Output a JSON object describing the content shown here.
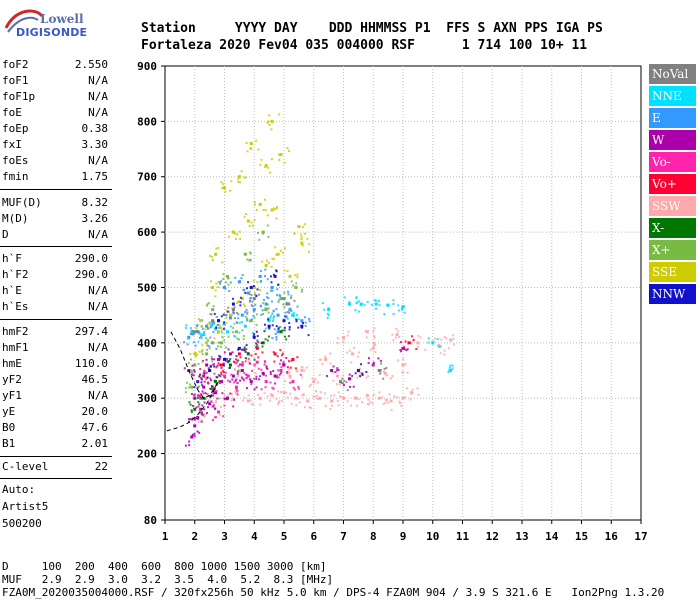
{
  "logo": {
    "top": "Lowell",
    "bottom": "DIGISONDE"
  },
  "header": {
    "line1": "Station     YYYY DAY    DDD HHMMSS P1  FFS S AXN PPS IGA PS",
    "line2": "Fortaleza 2020 Fev04 035 004000 RSF      1 714 100 10+ 11"
  },
  "params": {
    "foF2": {
      "label": "foF2",
      "value": "2.550"
    },
    "foF1": {
      "label": "foF1",
      "value": "N/A"
    },
    "foF1p": {
      "label": "foF1p",
      "value": "N/A"
    },
    "foE": {
      "label": "foE",
      "value": "N/A"
    },
    "foEp": {
      "label": "foEp",
      "value": "0.38"
    },
    "fxI": {
      "label": "fxI",
      "value": "3.30"
    },
    "foEs": {
      "label": "foEs",
      "value": "N/A"
    },
    "fmin": {
      "label": "fmin",
      "value": "1.75"
    },
    "MUFD": {
      "label": "MUF(D)",
      "value": "8.32"
    },
    "MD": {
      "label": "M(D)",
      "value": "3.26"
    },
    "D": {
      "label": "D",
      "value": "N/A"
    },
    "hF": {
      "label": "h`F",
      "value": "290.0"
    },
    "hF2": {
      "label": "h`F2",
      "value": "290.0"
    },
    "hE": {
      "label": "h`E",
      "value": "N/A"
    },
    "hEs": {
      "label": "h`Es",
      "value": "N/A"
    },
    "hmF2": {
      "label": "hmF2",
      "value": "297.4"
    },
    "hmF1": {
      "label": "hmF1",
      "value": "N/A"
    },
    "hmE": {
      "label": "hmE",
      "value": "110.0"
    },
    "yF2": {
      "label": "yF2",
      "value": "46.5"
    },
    "yF1": {
      "label": "yF1",
      "value": "N/A"
    },
    "yE": {
      "label": "yE",
      "value": "20.0"
    },
    "B0": {
      "label": "B0",
      "value": "47.6"
    },
    "B1": {
      "label": "B1",
      "value": "2.01"
    },
    "Clevel": {
      "label": "C-level",
      "value": "22"
    },
    "auto_label": "Auto:",
    "artist": "Artist5",
    "code": "500200"
  },
  "legend": [
    {
      "label": "NoVal",
      "color": "#808080"
    },
    {
      "label": "NNE",
      "color": "#00e0ff"
    },
    {
      "label": "E",
      "color": "#3399ff"
    },
    {
      "label": "W",
      "color": "#aa00aa"
    },
    {
      "label": "Vo-",
      "color": "#ff22aa"
    },
    {
      "label": "Vo+",
      "color": "#ff0033"
    },
    {
      "label": "SSW",
      "color": "#ffaaaa"
    },
    {
      "label": "X-",
      "color": "#007700"
    },
    {
      "label": "X+",
      "color": "#77bb44"
    },
    {
      "label": "SSE",
      "color": "#cccc00"
    },
    {
      "label": "NNW",
      "color": "#1111cc"
    }
  ],
  "footer": {
    "line1": "D     100  200  400  600  800 1000 1500 3000 [km]",
    "line2": "MUF   2.9  2.9  3.0  3.2  3.5  4.0  5.2  8.3 [MHz]",
    "line3": "FZA0M_2020035004000.RSF / 320fx256h 50 kHz 5.0 km / DPS-4 FZA0M 904 / 3.9 S 321.6 E   Ion2Png 1.3.20"
  },
  "chart_data": {
    "type": "scatter",
    "title": "",
    "xlabel": "",
    "ylabel": "",
    "xlim": [
      1,
      17
    ],
    "ylim": [
      80,
      900
    ],
    "x_ticks": [
      1,
      2,
      3,
      4,
      5,
      6,
      7,
      8,
      9,
      10,
      11,
      12,
      13,
      14,
      15,
      16,
      17
    ],
    "y_ticks": [
      80,
      200,
      300,
      400,
      500,
      600,
      700,
      800,
      900
    ],
    "grid": true,
    "clusters": [
      {
        "name": "SSW",
        "color": "#ffaaaa",
        "points": [
          [
            2.3,
            270
          ],
          [
            2.6,
            285
          ],
          [
            3.0,
            300
          ],
          [
            3.4,
            310
          ],
          [
            3.8,
            295
          ],
          [
            4.2,
            300
          ],
          [
            4.6,
            305
          ],
          [
            5.0,
            310
          ],
          [
            5.4,
            300
          ],
          [
            5.8,
            295
          ],
          [
            6.2,
            300
          ],
          [
            6.6,
            295
          ],
          [
            7.0,
            300
          ],
          [
            7.4,
            300
          ],
          [
            7.8,
            305
          ],
          [
            8.2,
            300
          ],
          [
            8.6,
            295
          ],
          [
            9.0,
            300
          ],
          [
            9.3,
            310
          ],
          [
            5.2,
            340
          ],
          [
            6.0,
            330
          ],
          [
            6.8,
            340
          ],
          [
            7.6,
            345
          ],
          [
            8.4,
            345
          ],
          [
            9.0,
            360
          ],
          [
            7.3,
            380
          ],
          [
            8.0,
            390
          ],
          [
            9.5,
            400
          ],
          [
            10.2,
            395
          ],
          [
            10.6,
            405
          ],
          [
            4.0,
            360
          ],
          [
            3.5,
            350
          ],
          [
            5.6,
            350
          ],
          [
            6.4,
            370
          ],
          [
            7.0,
            410
          ],
          [
            7.8,
            420
          ],
          [
            8.8,
            415
          ]
        ]
      },
      {
        "name": "W",
        "color": "#aa00aa",
        "points": [
          [
            1.9,
            230
          ],
          [
            2.0,
            250
          ],
          [
            2.1,
            265
          ],
          [
            2.2,
            280
          ],
          [
            2.0,
            300
          ],
          [
            2.3,
            320
          ],
          [
            2.5,
            290
          ],
          [
            2.7,
            310
          ],
          [
            2.9,
            330
          ],
          [
            3.1,
            300
          ],
          [
            3.3,
            340
          ],
          [
            3.6,
            350
          ],
          [
            3.9,
            330
          ],
          [
            4.3,
            345
          ],
          [
            4.7,
            340
          ],
          [
            5.0,
            360
          ],
          [
            2.4,
            360
          ],
          [
            2.8,
            370
          ],
          [
            3.2,
            380
          ],
          [
            1.8,
            350
          ],
          [
            6.6,
            350
          ],
          [
            7.2,
            335
          ],
          [
            8.0,
            360
          ],
          [
            9.0,
            390
          ]
        ]
      },
      {
        "name": "Vo-",
        "color": "#ff22aa",
        "points": [
          [
            2.2,
            300
          ],
          [
            2.6,
            320
          ],
          [
            3.0,
            340
          ],
          [
            3.4,
            320
          ],
          [
            3.8,
            340
          ],
          [
            4.4,
            330
          ],
          [
            4.9,
            350
          ],
          [
            5.3,
            330
          ],
          [
            2.5,
            350
          ],
          [
            3.6,
            360
          ],
          [
            4.1,
            365
          ],
          [
            2.8,
            275
          ]
        ]
      },
      {
        "name": "E",
        "color": "#3399ff",
        "points": [
          [
            1.8,
            410
          ],
          [
            2.1,
            420
          ],
          [
            2.4,
            430
          ],
          [
            2.8,
            440
          ],
          [
            3.2,
            445
          ],
          [
            3.6,
            450
          ],
          [
            4.0,
            460
          ],
          [
            4.4,
            470
          ],
          [
            4.8,
            450
          ],
          [
            5.2,
            460
          ],
          [
            5.6,
            440
          ],
          [
            3.0,
            500
          ],
          [
            3.5,
            510
          ],
          [
            4.2,
            520
          ],
          [
            4.6,
            500
          ],
          [
            5.0,
            480
          ],
          [
            3.8,
            490
          ],
          [
            2.6,
            400
          ],
          [
            4.8,
            420
          ]
        ]
      },
      {
        "name": "NNE",
        "color": "#00e0ff",
        "points": [
          [
            1.9,
            420
          ],
          [
            2.3,
            415
          ],
          [
            2.7,
            425
          ],
          [
            3.1,
            420
          ],
          [
            3.7,
            430
          ],
          [
            4.5,
            440
          ],
          [
            5.3,
            450
          ],
          [
            6.5,
            460
          ],
          [
            7.2,
            470
          ],
          [
            7.6,
            470
          ],
          [
            8.1,
            470
          ],
          [
            8.5,
            468
          ],
          [
            9.0,
            465
          ],
          [
            10.0,
            400
          ],
          [
            10.6,
            350
          ]
        ]
      },
      {
        "name": "SSE",
        "color": "#cccc00",
        "points": [
          [
            2.0,
            380
          ],
          [
            2.4,
            400
          ],
          [
            2.8,
            420
          ],
          [
            3.2,
            450
          ],
          [
            3.6,
            480
          ],
          [
            4.0,
            500
          ],
          [
            4.4,
            540
          ],
          [
            4.8,
            560
          ],
          [
            5.2,
            520
          ],
          [
            5.6,
            580
          ],
          [
            3.3,
            600
          ],
          [
            3.8,
            620
          ],
          [
            4.2,
            650
          ],
          [
            4.6,
            640
          ],
          [
            2.7,
            560
          ],
          [
            3.0,
            680
          ],
          [
            3.5,
            700
          ],
          [
            4.4,
            720
          ],
          [
            4.9,
            740
          ],
          [
            5.5,
            610
          ],
          [
            3.9,
            760
          ],
          [
            4.6,
            800
          ],
          [
            2.2,
            440
          ],
          [
            2.6,
            500
          ]
        ]
      },
      {
        "name": "X+",
        "color": "#77bb44",
        "points": [
          [
            2.0,
            360
          ],
          [
            2.4,
            380
          ],
          [
            2.9,
            400
          ],
          [
            3.4,
            420
          ],
          [
            3.9,
            440
          ],
          [
            4.4,
            460
          ],
          [
            4.9,
            480
          ],
          [
            5.4,
            500
          ],
          [
            2.6,
            460
          ],
          [
            3.1,
            520
          ],
          [
            3.7,
            560
          ],
          [
            4.3,
            600
          ],
          [
            1.9,
            320
          ]
        ]
      },
      {
        "name": "X-",
        "color": "#007700",
        "points": [
          [
            2.0,
            280
          ],
          [
            2.3,
            300
          ],
          [
            2.7,
            330
          ],
          [
            3.2,
            360
          ],
          [
            3.8,
            380
          ],
          [
            4.3,
            400
          ],
          [
            4.9,
            420
          ]
        ]
      },
      {
        "name": "NNW",
        "color": "#1111cc",
        "points": [
          [
            2.1,
            330
          ],
          [
            2.5,
            350
          ],
          [
            3.0,
            370
          ],
          [
            3.5,
            390
          ],
          [
            4.0,
            410
          ],
          [
            4.5,
            430
          ],
          [
            5.0,
            440
          ],
          [
            5.6,
            430
          ],
          [
            2.8,
            440
          ],
          [
            3.3,
            470
          ],
          [
            3.9,
            500
          ],
          [
            4.7,
            520
          ],
          [
            7.5,
            350
          ]
        ]
      },
      {
        "name": "Vo+",
        "color": "#ff0033",
        "points": [
          [
            2.3,
            340
          ],
          [
            2.9,
            360
          ],
          [
            3.5,
            380
          ],
          [
            4.1,
            390
          ],
          [
            4.7,
            380
          ],
          [
            5.3,
            370
          ],
          [
            9.2,
            400
          ]
        ]
      },
      {
        "name": "NoVal",
        "color": "#808080",
        "points": [
          [
            2.0,
            420
          ],
          [
            2.6,
            440
          ],
          [
            3.3,
            460
          ],
          [
            4.0,
            480
          ],
          [
            5.1,
            470
          ],
          [
            6.9,
            330
          ],
          [
            8.2,
            350
          ]
        ]
      }
    ],
    "dashed_trace": [
      [
        1.2,
        420
      ],
      [
        1.5,
        390
      ],
      [
        1.8,
        350
      ],
      [
        2.1,
        315
      ],
      [
        2.3,
        300
      ],
      [
        2.5,
        305
      ],
      [
        2.8,
        330
      ],
      [
        2.4,
        290
      ],
      [
        2.1,
        270
      ],
      [
        1.8,
        256
      ],
      [
        1.5,
        248
      ],
      [
        1.0,
        240
      ]
    ]
  }
}
